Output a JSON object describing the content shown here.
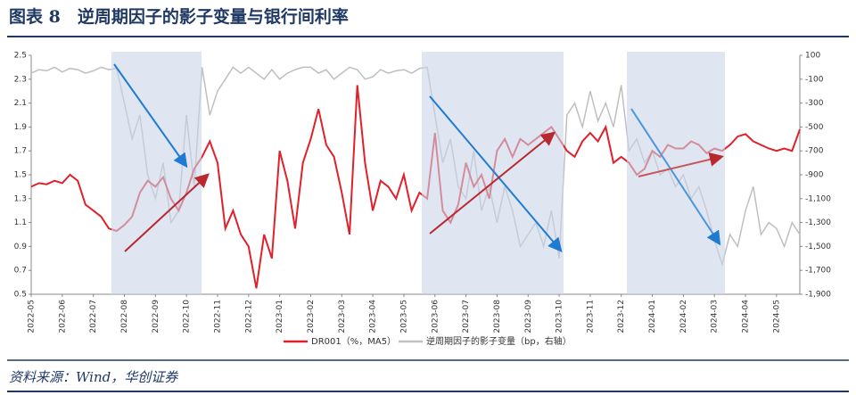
{
  "chart_data": {
    "type": "line",
    "title": "图表 8　逆周期因子的影子变量与银行间利率",
    "source": "资料来源：Wind，华创证券",
    "categories": [
      "2022-05",
      null,
      null,
      null,
      "2022-06",
      null,
      null,
      null,
      "2022-07",
      null,
      null,
      null,
      "2022-08",
      null,
      null,
      null,
      "2022-09",
      null,
      null,
      null,
      "2022-10",
      null,
      null,
      null,
      "2022-11",
      null,
      null,
      null,
      "2022-12",
      null,
      null,
      null,
      "2023-01",
      null,
      null,
      null,
      "2023-02",
      null,
      null,
      null,
      "2023-03",
      null,
      null,
      null,
      "2023-04",
      null,
      null,
      null,
      "2023-05",
      null,
      null,
      null,
      "2023-06",
      null,
      null,
      null,
      "2023-07",
      null,
      null,
      null,
      "2023-08",
      null,
      null,
      null,
      "2023-09",
      null,
      null,
      null,
      "2023-10",
      null,
      null,
      null,
      "2023-11",
      null,
      null,
      null,
      "2023-12",
      null,
      null,
      null,
      "2024-01",
      null,
      null,
      null,
      "2024-02",
      null,
      null,
      null,
      "2024-03",
      null,
      null,
      null,
      "2024-04",
      null,
      null,
      null,
      "2024-05",
      null,
      null,
      null
    ],
    "series": [
      {
        "name": "逆周期因子的影子变量（bp，右轴）",
        "color": "#bfbfbf",
        "axis": "y2",
        "values": [
          -50,
          -20,
          -30,
          0,
          -40,
          -10,
          -20,
          -50,
          -30,
          0,
          -20,
          -10,
          -300,
          -600,
          -400,
          -900,
          -1100,
          -800,
          -1300,
          -1200,
          -400,
          -1000,
          0,
          -400,
          -200,
          -100,
          0,
          -50,
          0,
          -50,
          -100,
          -20,
          -100,
          -50,
          -20,
          0,
          0,
          -50,
          -20,
          -100,
          -50,
          0,
          -20,
          -100,
          -80,
          -20,
          -50,
          -30,
          -20,
          -50,
          -10,
          0,
          -400,
          -800,
          -600,
          -1000,
          -1100,
          -700,
          -1200,
          -1000,
          -1300,
          -1000,
          -1200,
          -1500,
          -1400,
          -1300,
          -1500,
          -1200,
          -1600,
          -400,
          -300,
          -500,
          -200,
          -450,
          -300,
          -500,
          -150,
          -700,
          -600,
          -800,
          -700,
          -900,
          -850,
          -1000,
          -900,
          -1100,
          -1000,
          -1200,
          -1450,
          -1650,
          -1400,
          -1500,
          -1200,
          -1000,
          -1400,
          -1300,
          -1350,
          -1500,
          -1300,
          -1400
        ]
      },
      {
        "name": "DR001（%，MA5）",
        "color": "#e0202a",
        "values": [
          1.4,
          1.43,
          1.42,
          1.45,
          1.43,
          1.5,
          1.45,
          1.25,
          1.2,
          1.15,
          1.05,
          1.03,
          1.08,
          1.15,
          1.35,
          1.45,
          1.4,
          1.48,
          1.3,
          1.2,
          1.35,
          1.55,
          1.65,
          1.78,
          1.6,
          1.05,
          1.2,
          1.0,
          0.9,
          0.55,
          1.0,
          0.8,
          1.7,
          1.45,
          1.05,
          1.6,
          1.8,
          2.05,
          1.75,
          1.65,
          1.35,
          1.0,
          2.25,
          1.6,
          1.2,
          1.45,
          1.4,
          1.3,
          1.5,
          1.2,
          1.35,
          1.3,
          1.85,
          1.2,
          1.1,
          1.25,
          1.6,
          1.4,
          1.5,
          1.3,
          1.7,
          1.8,
          1.65,
          1.8,
          1.75,
          1.8,
          1.85,
          1.9,
          1.8,
          1.7,
          1.65,
          1.78,
          1.85,
          1.78,
          1.9,
          1.6,
          1.65,
          1.6,
          1.5,
          1.55,
          1.7,
          1.65,
          1.75,
          1.72,
          1.72,
          1.78,
          1.75,
          1.68,
          1.72,
          1.7,
          1.75,
          1.82,
          1.84,
          1.78,
          1.75,
          1.72,
          1.7,
          1.72,
          1.7,
          1.88
        ]
      }
    ],
    "ylim": [
      0.5,
      2.5
    ],
    "yticks": [
      0.5,
      0.7,
      0.9,
      1.1,
      1.3,
      1.5,
      1.7,
      1.9,
      2.1,
      2.3,
      2.5
    ],
    "y2lim": [
      -1900,
      100
    ],
    "y2ticks": [
      {
        "value": -1900,
        "label": "-1,900"
      },
      {
        "value": -1700,
        "label": "-1,700"
      },
      {
        "value": -1500,
        "label": "-1,500"
      },
      {
        "value": -1300,
        "label": "-1,300"
      },
      {
        "value": -1100,
        "label": "-1,100"
      },
      -900,
      -700,
      -500,
      -300,
      -100,
      100
    ],
    "legend": "bottom"
  }
}
